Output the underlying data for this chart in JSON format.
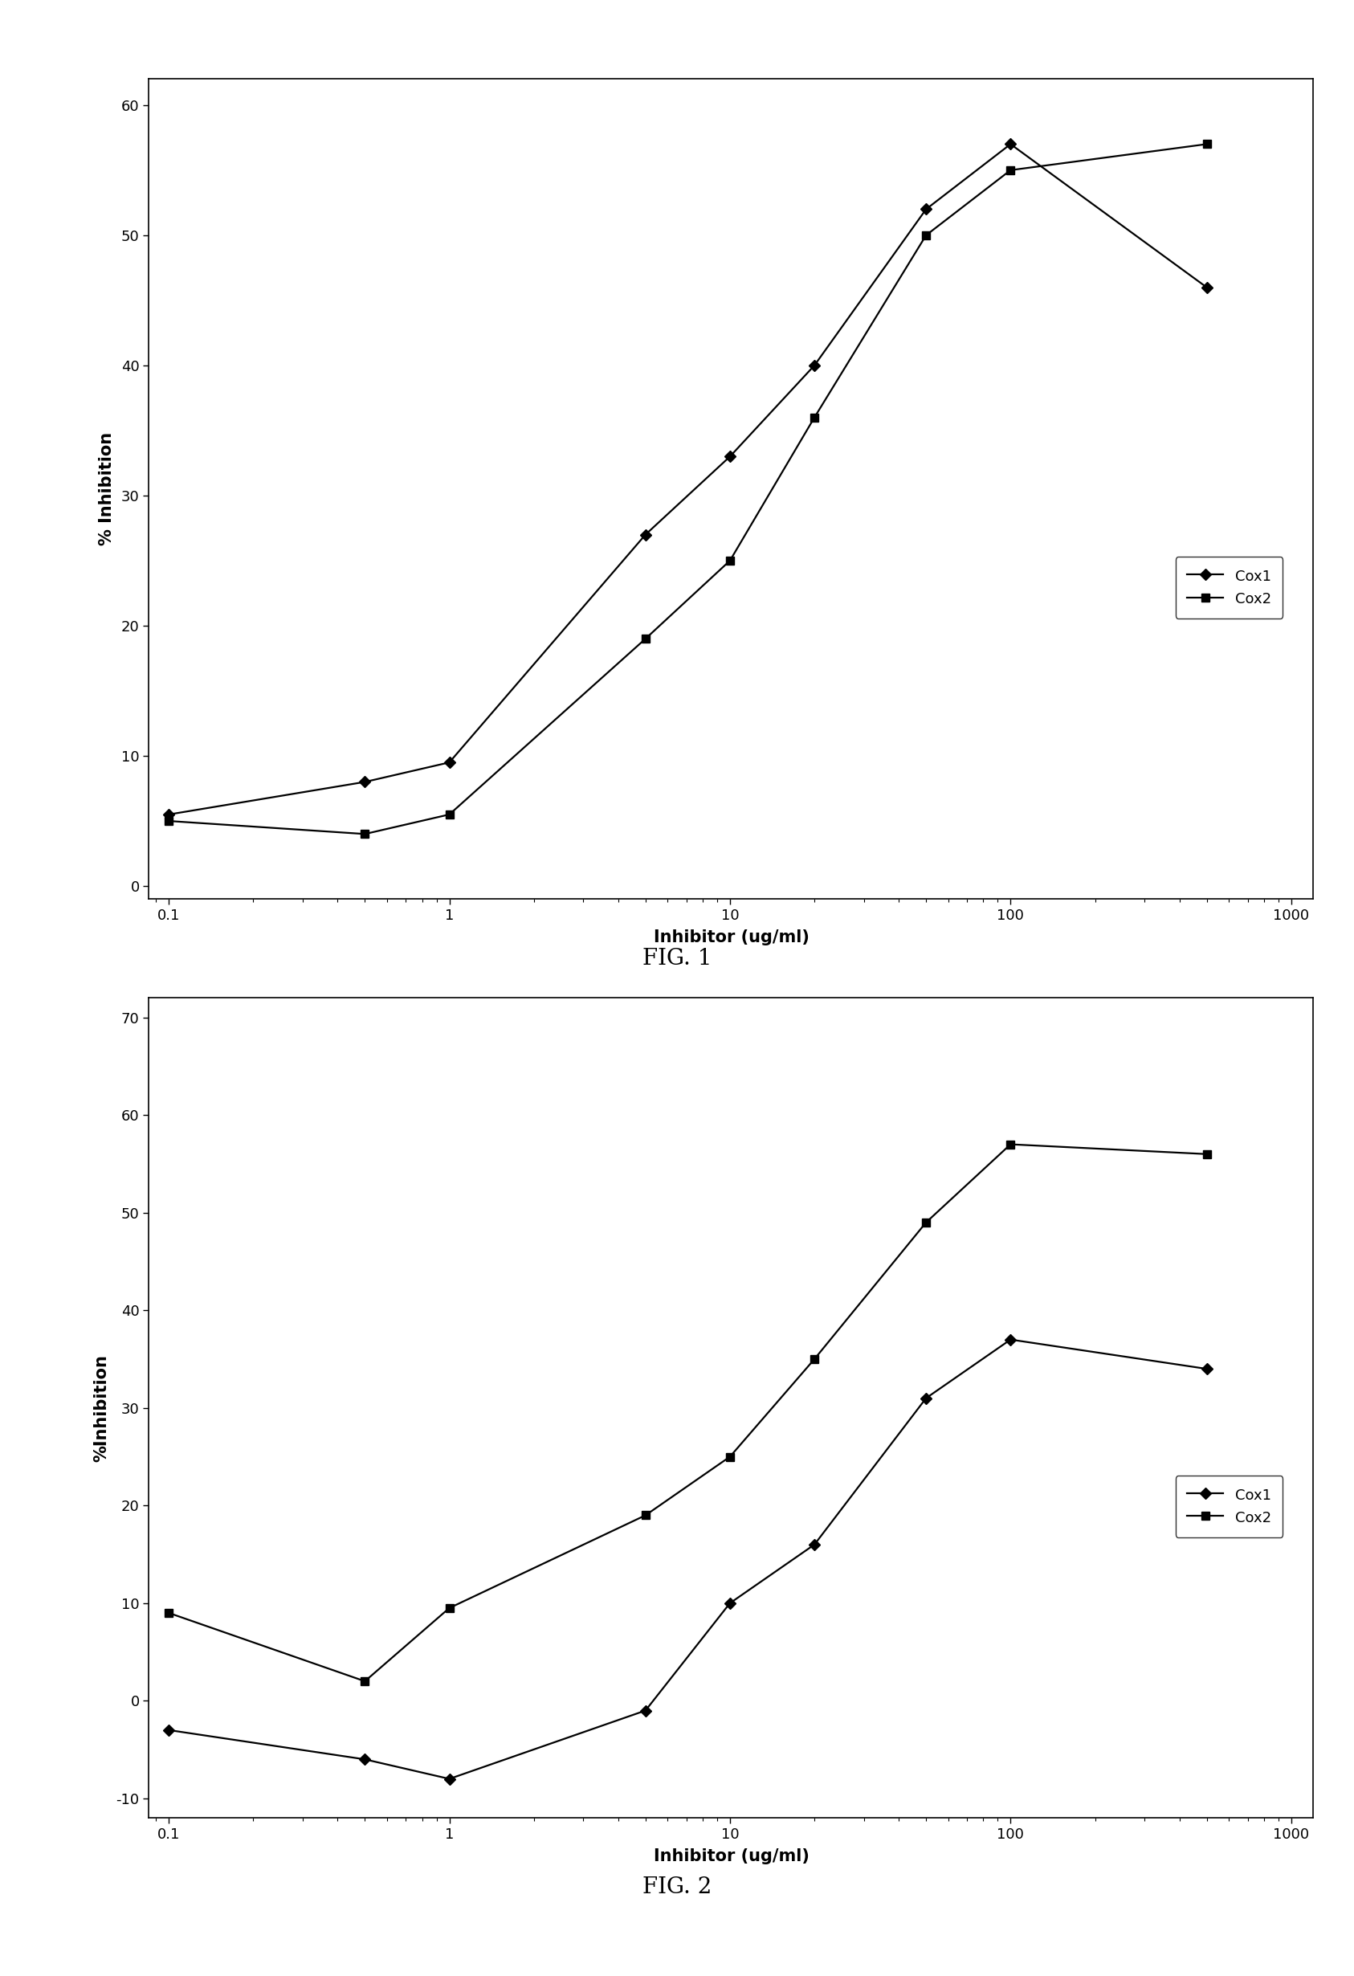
{
  "fig1": {
    "cox1_x": [
      0.1,
      0.5,
      1,
      5,
      10,
      20,
      50,
      100,
      500
    ],
    "cox1_y": [
      5.5,
      8,
      9.5,
      27,
      33,
      40,
      52,
      57,
      46
    ],
    "cox2_x": [
      0.1,
      0.5,
      1,
      5,
      10,
      20,
      50,
      100,
      500
    ],
    "cox2_y": [
      5,
      4,
      5.5,
      19,
      25,
      36,
      50,
      55,
      57
    ],
    "ylabel": "% Inhibition",
    "xlabel": "Inhibitor (ug/ml)",
    "ylim": [
      -1,
      62
    ],
    "yticks": [
      0,
      10,
      20,
      30,
      40,
      50,
      60
    ],
    "fig_label": "FIG. 1"
  },
  "fig2": {
    "cox1_x": [
      0.1,
      0.5,
      1,
      5,
      10,
      20,
      50,
      100,
      500
    ],
    "cox1_y": [
      -3,
      -6,
      -8,
      -1,
      10,
      16,
      31,
      37,
      34
    ],
    "cox2_x": [
      0.1,
      0.5,
      1,
      5,
      10,
      20,
      50,
      100,
      500
    ],
    "cox2_y": [
      9,
      2,
      9.5,
      19,
      25,
      35,
      49,
      57,
      56
    ],
    "ylabel": "%Inhibition",
    "xlabel": "Inhibitor (ug/ml)",
    "ylim": [
      -12,
      72
    ],
    "yticks": [
      -10,
      0,
      10,
      20,
      30,
      40,
      50,
      60,
      70
    ],
    "fig_label": "FIG. 2"
  },
  "line_color": "#000000",
  "cox1_marker": "D",
  "cox2_marker": "s",
  "marker_size": 7,
  "linewidth": 1.6,
  "legend_cox1": "Cox1",
  "legend_cox2": "Cox2",
  "background_color": "#ffffff",
  "xlim": [
    0.085,
    1200
  ],
  "xticks": [
    0.1,
    1,
    10,
    100,
    1000
  ],
  "xtick_labels": [
    "0.1",
    "1",
    "10",
    "100",
    "1000"
  ],
  "tick_label_fontsize": 13,
  "axis_label_fontsize": 15,
  "legend_fontsize": 13,
  "fig_label_fontsize": 20
}
